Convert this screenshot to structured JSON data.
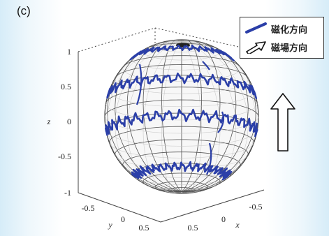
{
  "panel_label": "(c)",
  "legend": {
    "items": [
      {
        "label": "磁化方向",
        "color": "#2b3fa8"
      },
      {
        "label": "磁場方向",
        "color": "#111111"
      }
    ]
  },
  "chart_data": {
    "type": "line",
    "projection": "3d-sphere",
    "axes": {
      "z": {
        "label": "z",
        "ticks": [
          "1",
          "0.5",
          "0",
          "-0.5",
          "-1"
        ],
        "lim": [
          -1,
          1
        ]
      },
      "y": {
        "label": "y",
        "ticks": [
          "-0.5",
          "0",
          "0.5"
        ],
        "lim": [
          -1,
          1
        ]
      },
      "x": {
        "label": "x",
        "ticks": [
          "0.5",
          "0",
          "-0.5"
        ],
        "lim": [
          -1,
          1
        ]
      }
    },
    "grid": true,
    "sphere": {
      "radius": 1,
      "meridians": 24,
      "parallels": 18,
      "color": "#555555"
    },
    "series": [
      {
        "name": "磁化方向",
        "color": "#2b3fa8",
        "trajectory_z_levels": [
          0.78,
          0.3,
          -0.2,
          -0.8
        ]
      },
      {
        "name": "磁場方向",
        "direction": [
          0,
          0,
          1
        ],
        "color": "#111111"
      }
    ],
    "legend_position": "top-right"
  }
}
